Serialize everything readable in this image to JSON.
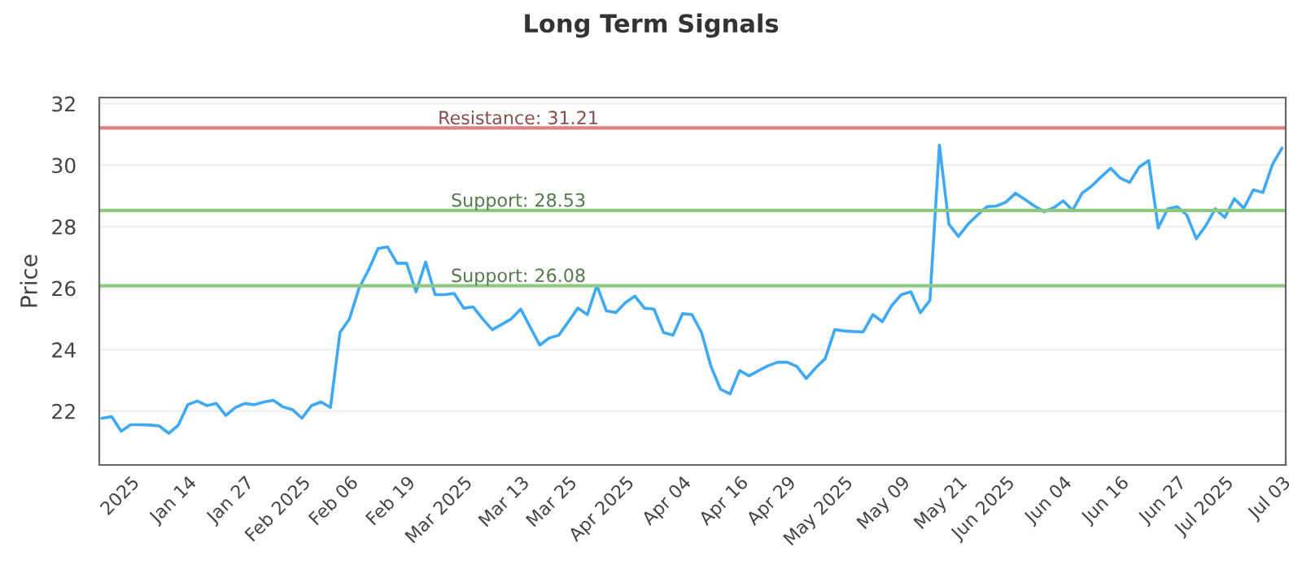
{
  "chart_data": {
    "type": "line",
    "title": "Long Term Signals",
    "ylabel": "Price",
    "categories": [
      null,
      null,
      null,
      "2025",
      null,
      null,
      null,
      null,
      null,
      "Jan 14",
      null,
      null,
      null,
      null,
      null,
      "Jan 27",
      null,
      null,
      null,
      null,
      null,
      "Feb 2025",
      null,
      null,
      null,
      null,
      "Feb 06",
      null,
      null,
      null,
      null,
      null,
      "Feb 19",
      null,
      null,
      null,
      null,
      null,
      "Mar 2025",
      null,
      null,
      null,
      null,
      null,
      "Mar 13",
      null,
      null,
      null,
      null,
      "Mar 25",
      null,
      null,
      null,
      null,
      null,
      "Apr 2025",
      null,
      null,
      null,
      null,
      null,
      "Apr 04",
      null,
      null,
      null,
      null,
      null,
      "Apr 16",
      null,
      null,
      null,
      null,
      "Apr 29",
      null,
      null,
      null,
      null,
      null,
      "May 2025",
      null,
      null,
      null,
      null,
      null,
      "May 09",
      null,
      null,
      null,
      null,
      null,
      "May 21",
      null,
      null,
      null,
      null,
      "Jun 2025",
      null,
      null,
      null,
      null,
      null,
      "Jun 04",
      null,
      null,
      null,
      null,
      null,
      "Jun 16",
      null,
      null,
      null,
      null,
      null,
      "Jun 27",
      null,
      null,
      null,
      null,
      "Jul 2025",
      null,
      null,
      null,
      null,
      null,
      "Jul 03"
    ],
    "series": [
      {
        "color": "#3fa9f5",
        "values": [
          21.77,
          21.82,
          21.35,
          21.56,
          21.56,
          21.55,
          21.52,
          21.28,
          21.54,
          22.21,
          22.33,
          22.18,
          22.25,
          21.86,
          22.12,
          22.25,
          22.21,
          22.3,
          22.35,
          22.14,
          22.05,
          21.77,
          22.18,
          22.3,
          22.12,
          24.56,
          25.0,
          26.0,
          26.59,
          27.29,
          27.34,
          26.81,
          26.81,
          25.88,
          26.85,
          25.79,
          25.79,
          25.83,
          25.35,
          25.39,
          25.0,
          24.65,
          24.82,
          25.0,
          25.32,
          24.73,
          24.15,
          24.38,
          24.47,
          24.91,
          25.35,
          25.14,
          26.09,
          25.26,
          25.21,
          25.53,
          25.74,
          25.35,
          25.32,
          24.56,
          24.47,
          25.17,
          25.14,
          24.56,
          23.45,
          22.71,
          22.56,
          23.32,
          23.15,
          23.32,
          23.48,
          23.59,
          23.59,
          23.46,
          23.06,
          23.41,
          23.71,
          24.65,
          24.61,
          24.59,
          24.58,
          25.14,
          24.91,
          25.44,
          25.79,
          25.88,
          25.2,
          25.6,
          30.65,
          28.08,
          27.68,
          28.08,
          28.38,
          28.65,
          28.67,
          28.8,
          29.09,
          28.88,
          28.67,
          28.49,
          28.61,
          28.84,
          28.53,
          29.09,
          29.32,
          29.62,
          29.9,
          29.58,
          29.44,
          29.94,
          30.15,
          27.96,
          28.58,
          28.65,
          28.38,
          27.61,
          28.03,
          28.58,
          28.3,
          28.91,
          28.6,
          29.2,
          29.11,
          30.02,
          30.55
        ]
      }
    ],
    "ylim": [
      20.25,
      32.2
    ],
    "yticks": [
      22,
      24,
      26,
      28,
      30,
      32
    ],
    "grid": "y",
    "marker": "none",
    "line_style": "solid",
    "ref_lines": [
      {
        "axis": "y",
        "value": 31.21,
        "label": "Resistance: 31.21",
        "color": "#e08080"
      },
      {
        "axis": "y",
        "value": 28.53,
        "label": "Support: 28.53",
        "color": "#8cc97e"
      },
      {
        "axis": "y",
        "value": 26.08,
        "label": "Support: 26.08",
        "color": "#8cc97e"
      }
    ]
  }
}
